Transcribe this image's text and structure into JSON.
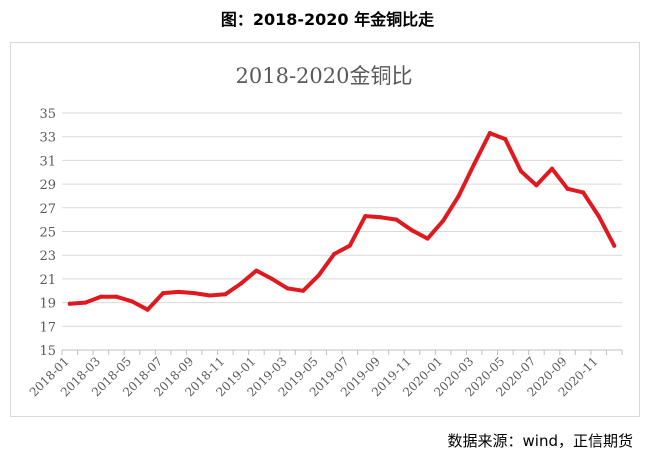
{
  "caption": "图：2018-2020 年金铜比走",
  "source": "数据来源：wind，正信期货",
  "chart_data": {
    "type": "line",
    "title": "2018-2020金铜比",
    "xlabel": "",
    "ylabel": "",
    "ylim": [
      15,
      35
    ],
    "yticks": [
      15,
      17,
      19,
      21,
      23,
      25,
      27,
      29,
      31,
      33,
      35
    ],
    "grid": true,
    "legend": "none",
    "line_color": "#e0191e",
    "categories": [
      "2018-01",
      "2018-02",
      "2018-03",
      "2018-04",
      "2018-05",
      "2018-06",
      "2018-07",
      "2018-08",
      "2018-09",
      "2018-10",
      "2018-11",
      "2018-12",
      "2019-01",
      "2019-02",
      "2019-03",
      "2019-04",
      "2019-05",
      "2019-06",
      "2019-07",
      "2019-08",
      "2019-09",
      "2019-10",
      "2019-11",
      "2019-12",
      "2020-01",
      "2020-02",
      "2020-03",
      "2020-04",
      "2020-05",
      "2020-06",
      "2020-07",
      "2020-08",
      "2020-09",
      "2020-10",
      "2020-11",
      "2020-12"
    ],
    "tick_labels": [
      "2018-01",
      "2018-03",
      "2018-05",
      "2018-07",
      "2018-09",
      "2018-11",
      "2019-01",
      "2019-03",
      "2019-05",
      "2019-07",
      "2019-09",
      "2019-11",
      "2020-01",
      "2020-03",
      "2020-05",
      "2020-07",
      "2020-09",
      "2020-11"
    ],
    "series": [
      {
        "values": [
          18.9,
          19.0,
          19.5,
          19.5,
          19.1,
          18.4,
          19.8,
          19.9,
          19.8,
          19.6,
          19.7,
          20.6,
          21.7,
          21.0,
          20.2,
          20.0,
          21.3,
          23.1,
          23.8,
          26.3,
          26.2,
          26.0,
          25.1,
          24.4,
          25.9,
          28.0,
          30.7,
          33.3,
          32.8,
          30.1,
          28.9,
          30.3,
          28.6,
          28.3,
          26.3,
          23.8
        ]
      }
    ]
  }
}
